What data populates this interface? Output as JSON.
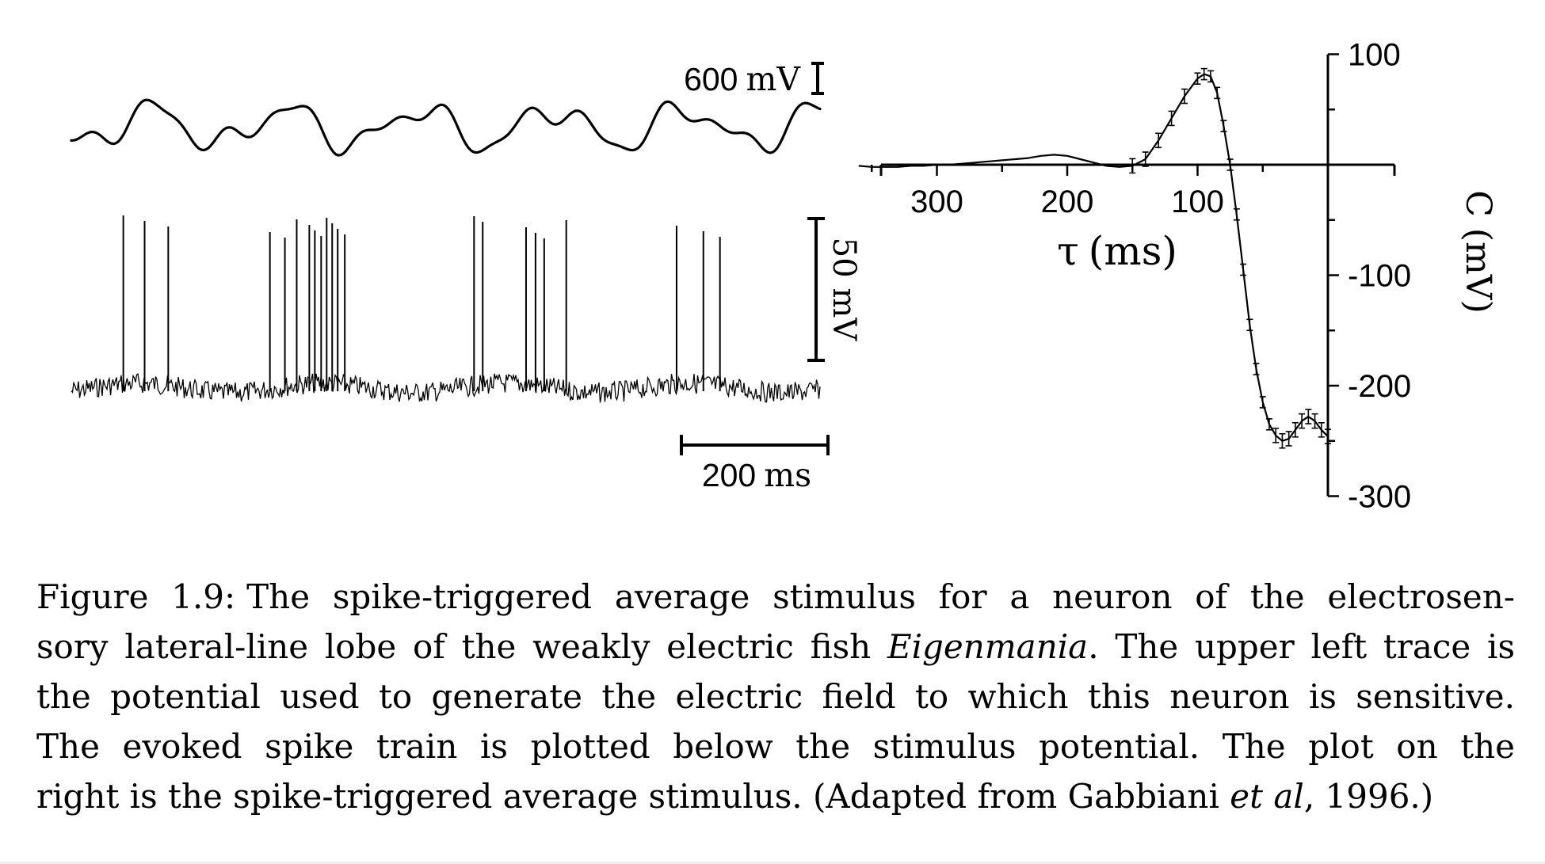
{
  "stimulus_trace": {
    "scale_value": "600",
    "scale_unit": "mV"
  },
  "spike_trace": {
    "scale_label": "50 mV",
    "time_scale_value": "200",
    "time_scale_unit": "ms",
    "spike_times_ms": [
      66,
      93,
      123,
      252,
      271,
      286,
      302,
      309,
      317,
      324,
      331,
      338,
      347,
      511,
      522,
      577,
      589,
      600,
      628,
      768,
      802,
      823
    ]
  },
  "chart_data": {
    "type": "line",
    "x_axis": {
      "label_symbol": "τ",
      "label_unit": "(ms)",
      "ticks": [
        "300",
        "200",
        "100"
      ],
      "range": [
        0,
        360
      ],
      "reversed": true
    },
    "y_axis": {
      "label": "C (mV)",
      "ticks": [
        "100",
        "-100",
        "-200",
        "-300"
      ],
      "range": [
        -300,
        100
      ]
    },
    "grid": false,
    "error_bars": true,
    "series": [
      {
        "x": [
          360,
          350,
          340,
          330,
          320,
          310,
          300,
          290,
          280,
          270,
          260,
          250,
          240,
          230,
          220,
          210,
          200,
          190,
          180,
          170,
          160,
          150,
          140,
          130,
          120,
          110,
          100,
          95,
          90,
          85,
          80,
          75,
          70,
          65,
          60,
          55,
          50,
          45,
          40,
          35,
          30,
          25,
          20,
          15,
          10,
          5,
          0
        ],
        "y": [
          -1,
          -2,
          -2,
          -2,
          -1,
          -1,
          0,
          0,
          1,
          2,
          3,
          4,
          5,
          6,
          8,
          9,
          8,
          5,
          2,
          -1,
          -2,
          -1,
          5,
          22,
          42,
          62,
          78,
          82,
          80,
          65,
          35,
          0,
          -45,
          -95,
          -145,
          -185,
          -215,
          -235,
          -245,
          -250,
          -248,
          -240,
          -232,
          -228,
          -232,
          -240,
          -246
        ]
      }
    ]
  },
  "caption": {
    "label": "Figure 1.9:",
    "line1": "The spike-triggered average stimulus for a neuron of the electrosen-",
    "line2_a": "sory lateral-line lobe of the weakly electric fish ",
    "line2_italic": "Eigenmania",
    "line2_b": ". The upper left trace is",
    "line3": "the potential used to generate the electric field to which this neuron is sensitive.",
    "line4": "The evoked spike train is plotted below the stimulus potential.  The plot on the",
    "line5_a": "right is the spike-triggered average stimulus. (Adapted from Gabbiani ",
    "line5_italic": "et al",
    "line5_b": ", 1996.)"
  }
}
